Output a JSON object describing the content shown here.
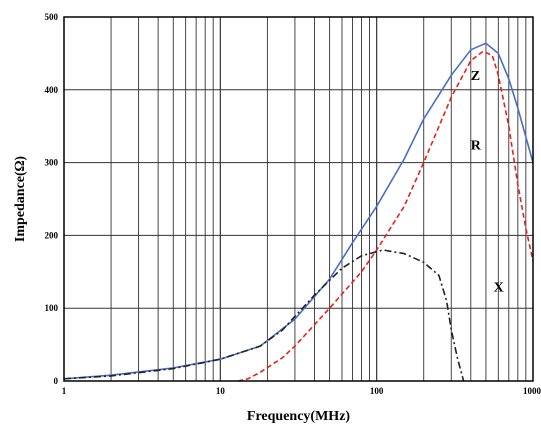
{
  "chart_data": {
    "type": "line",
    "xlabel": "Frequency(MHz)",
    "ylabel": "Impedance(Ω)",
    "xscale": "log",
    "xlim": [
      1,
      1000
    ],
    "ylim": [
      0,
      500
    ],
    "grid": true,
    "x_ticks": [
      {
        "value": 1,
        "label": "1"
      },
      {
        "value": 10,
        "label": "10"
      },
      {
        "value": 100,
        "label": "100"
      },
      {
        "value": 1000,
        "label": "1000"
      }
    ],
    "y_ticks": [
      {
        "value": 0,
        "label": "0"
      },
      {
        "value": 100,
        "label": "100"
      },
      {
        "value": 200,
        "label": "200"
      },
      {
        "value": 300,
        "label": "300"
      },
      {
        "value": 400,
        "label": "400"
      },
      {
        "value": 500,
        "label": "500"
      }
    ],
    "series": [
      {
        "name": "Z",
        "color": "#4a6fc7",
        "style": "solid",
        "label_at": [
          400,
          420
        ],
        "points": [
          [
            1,
            3
          ],
          [
            2,
            8
          ],
          [
            5,
            18
          ],
          [
            10,
            30
          ],
          [
            18,
            48
          ],
          [
            30,
            85
          ],
          [
            50,
            140
          ],
          [
            70,
            190
          ],
          [
            100,
            240
          ],
          [
            150,
            305
          ],
          [
            200,
            360
          ],
          [
            300,
            420
          ],
          [
            400,
            455
          ],
          [
            500,
            464
          ],
          [
            600,
            450
          ],
          [
            700,
            415
          ],
          [
            800,
            375
          ],
          [
            1000,
            300
          ]
        ]
      },
      {
        "name": "R",
        "color": "#e8211c",
        "style": "dashed",
        "label_at": [
          400,
          325
        ],
        "points": [
          [
            13,
            0
          ],
          [
            15,
            3
          ],
          [
            18,
            12
          ],
          [
            25,
            32
          ],
          [
            30,
            48
          ],
          [
            50,
            100
          ],
          [
            80,
            150
          ],
          [
            100,
            180
          ],
          [
            150,
            240
          ],
          [
            200,
            300
          ],
          [
            300,
            390
          ],
          [
            400,
            440
          ],
          [
            480,
            453
          ],
          [
            550,
            447
          ],
          [
            600,
            420
          ],
          [
            700,
            350
          ],
          [
            800,
            270
          ],
          [
            900,
            210
          ],
          [
            1000,
            165
          ]
        ]
      },
      {
        "name": "X",
        "color": "#222222",
        "style": "dashdot",
        "label_at": [
          560,
          130
        ],
        "points": [
          [
            1,
            3
          ],
          [
            2,
            7
          ],
          [
            5,
            17
          ],
          [
            10,
            30
          ],
          [
            18,
            48
          ],
          [
            25,
            70
          ],
          [
            40,
            118
          ],
          [
            60,
            155
          ],
          [
            80,
            172
          ],
          [
            110,
            180
          ],
          [
            150,
            175
          ],
          [
            200,
            163
          ],
          [
            250,
            145
          ],
          [
            280,
            110
          ],
          [
            300,
            70
          ],
          [
            330,
            30
          ],
          [
            360,
            0
          ]
        ]
      }
    ]
  }
}
